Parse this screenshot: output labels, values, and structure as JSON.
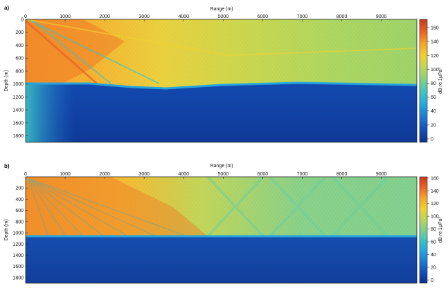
{
  "chart_data": [
    {
      "panel_label": "a)",
      "type": "heatmap",
      "xlabel": "Range (m)",
      "ylabel": "Depth (m)",
      "colorbar_label": "dB re 1μPa²",
      "x_ticks": [
        0,
        1000,
        2000,
        3000,
        4000,
        5000,
        6000,
        7000,
        8000,
        9000
      ],
      "y_ticks": [
        0,
        200,
        400,
        600,
        800,
        1000,
        1200,
        1400,
        1600,
        1800
      ],
      "colorbar_ticks": [
        0,
        20,
        40,
        60,
        80,
        100,
        120,
        140,
        160
      ],
      "xlim": [
        0,
        9900
      ],
      "ylim": [
        1900,
        0
      ],
      "clim": [
        -5,
        172
      ],
      "source_depth": 0,
      "seabed_depth_range": [
        1000,
        1100
      ],
      "colormap": [
        "#0d2f8a",
        "#1450b8",
        "#1e78d0",
        "#23a5de",
        "#3cc4c4",
        "#7ecf8a",
        "#b9d65a",
        "#f0d230",
        "#f7a626",
        "#ea6224",
        "#c8391c"
      ]
    },
    {
      "panel_label": "b)",
      "type": "heatmap",
      "xlabel": "Range (m)",
      "ylabel": "Depth (m)",
      "colorbar_label": "dB re 1μPa²",
      "x_ticks": [
        0,
        1000,
        2000,
        3000,
        4000,
        5000,
        6000,
        7000,
        8000,
        9000
      ],
      "y_ticks": [
        200,
        400,
        600,
        800,
        1000,
        1200,
        1400,
        1600,
        1800
      ],
      "colorbar_ticks": [
        0,
        20,
        40,
        60,
        80,
        100,
        120,
        140,
        160
      ],
      "xlim": [
        0,
        9900
      ],
      "ylim": [
        1900,
        0
      ],
      "clim": [
        -5,
        162
      ],
      "source_depth": 0,
      "seabed_depth_range": [
        1000,
        1080
      ],
      "colormap": [
        "#0d2f8a",
        "#1450b8",
        "#1e78d0",
        "#23a5de",
        "#3cc4c4",
        "#7ecf8a",
        "#b9d65a",
        "#f0d230",
        "#f7a626",
        "#ea6224",
        "#c8391c"
      ]
    }
  ]
}
